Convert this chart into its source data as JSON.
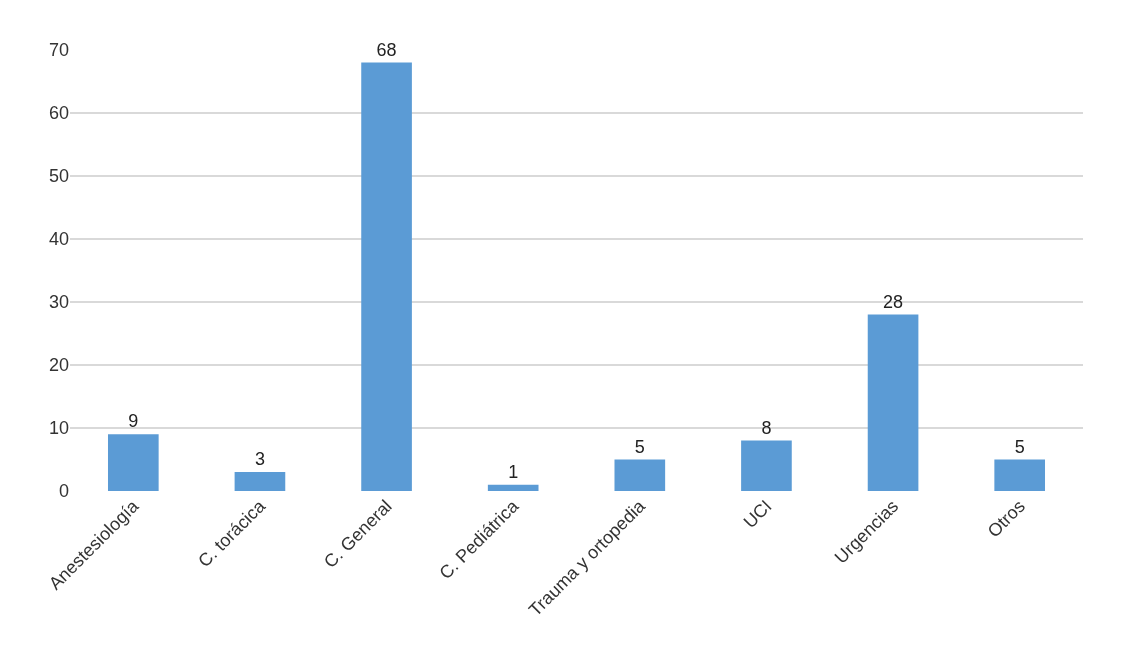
{
  "chart_data": {
    "type": "bar",
    "categories": [
      "Anestesiología",
      "C. torácica",
      "C. General",
      "C. Pediátrica",
      "Trauma y ortopedia",
      "UCI",
      "Urgencias",
      "Otros"
    ],
    "values": [
      9,
      3,
      68,
      1,
      5,
      8,
      28,
      5
    ],
    "color": "#5b9bd5",
    "ylim": [
      0,
      70
    ],
    "yticks": [
      0,
      10,
      20,
      30,
      40,
      50,
      60,
      70
    ],
    "grid": "y",
    "data_labels": true
  }
}
